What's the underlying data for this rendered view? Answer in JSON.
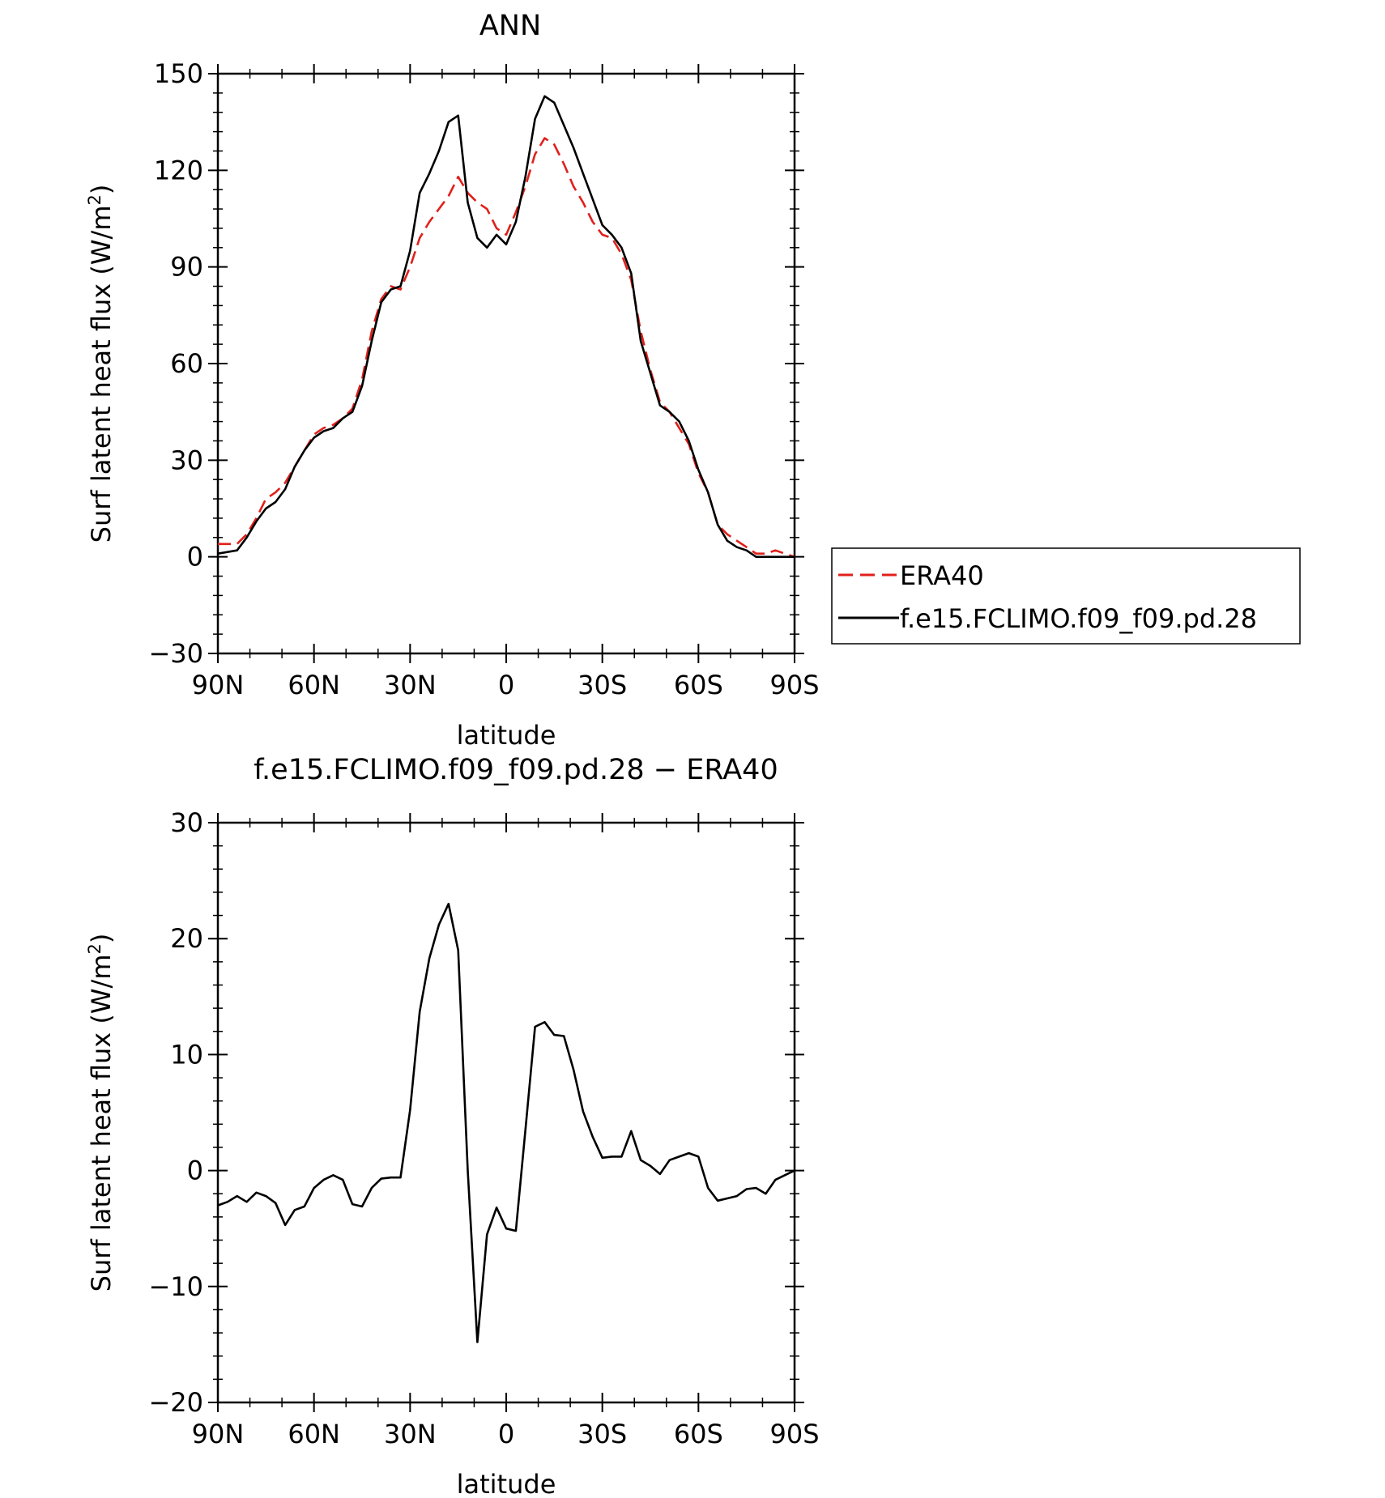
{
  "chart_data": [
    {
      "type": "line",
      "title": "ANN",
      "xlabel": "latitude",
      "ylabel": "Surf latent heat flux (W/m",
      "ylabel_superscript": "2",
      "ylabel_suffix": ")",
      "xlim": [
        90,
        -90
      ],
      "ylim": [
        -30,
        150
      ],
      "x_ticks": [
        90,
        60,
        30,
        0,
        -30,
        -60,
        -90
      ],
      "x_tick_labels": [
        "90N",
        "60N",
        "30N",
        "0",
        "30S",
        "60S",
        "90S"
      ],
      "y_ticks": [
        -30,
        0,
        30,
        60,
        90,
        120,
        150
      ],
      "y_tick_labels": [
        "−30",
        "0",
        "30",
        "60",
        "90",
        "120",
        "150"
      ],
      "grid": false,
      "legend": "right",
      "series": [
        {
          "name": "ERA40",
          "color": "#e0201b",
          "dash": "dashed",
          "x": [
            90,
            87,
            84,
            81,
            78,
            75,
            72,
            69,
            66,
            63,
            60,
            57,
            54,
            51,
            48,
            45,
            42,
            39,
            36,
            33,
            30,
            27,
            24,
            21,
            18,
            15,
            12,
            9,
            6,
            3,
            0,
            -3,
            -6,
            -9,
            -12,
            -15,
            -18,
            -21,
            -24,
            -27,
            -30,
            -33,
            -36,
            -39,
            -42,
            -45,
            -48,
            -51,
            -54,
            -57,
            -60,
            -63,
            -66,
            -69,
            -72,
            -75,
            -78,
            -81,
            -84,
            -87,
            -90
          ],
          "values": [
            4,
            4,
            4,
            7,
            12,
            18,
            20,
            23,
            28,
            33,
            38,
            40,
            41,
            43,
            46,
            55,
            70,
            80,
            84,
            83,
            90,
            99,
            104,
            108,
            112,
            118,
            113,
            110,
            108,
            102,
            100,
            107,
            115,
            125,
            130,
            128,
            122,
            115,
            110,
            104,
            100,
            99,
            94,
            86,
            70,
            58,
            48,
            45,
            40,
            35,
            26,
            20,
            10,
            7,
            5,
            3,
            1,
            1,
            2,
            1,
            0
          ]
        },
        {
          "name": "f.e15.FCLIMO.f09_f09.pd.28",
          "color": "#000000",
          "dash": "solid",
          "x": [
            90,
            87,
            84,
            81,
            78,
            75,
            72,
            69,
            66,
            63,
            60,
            57,
            54,
            51,
            48,
            45,
            42,
            39,
            36,
            33,
            30,
            27,
            24,
            21,
            18,
            15,
            12,
            9,
            6,
            3,
            0,
            -3,
            -6,
            -9,
            -12,
            -15,
            -18,
            -21,
            -24,
            -27,
            -30,
            -33,
            -36,
            -39,
            -42,
            -45,
            -48,
            -51,
            -54,
            -57,
            -60,
            -63,
            -66,
            -69,
            -72,
            -75,
            -78,
            -81,
            -84,
            -87,
            -90
          ],
          "values": [
            1,
            1.5,
            2,
            6,
            11,
            15,
            17,
            21,
            28,
            33,
            37,
            39,
            40,
            43,
            45,
            53,
            67,
            79,
            83,
            84,
            95,
            113,
            119,
            126,
            135,
            137,
            110,
            99,
            96,
            100,
            97,
            104,
            118,
            136,
            143,
            141,
            134,
            127,
            119,
            111,
            103,
            100,
            96,
            88,
            67,
            57,
            47,
            45,
            42,
            36,
            27,
            20,
            10,
            5,
            3,
            2,
            0,
            0,
            0,
            0,
            0
          ]
        }
      ]
    },
    {
      "type": "line",
      "title": "f.e15.FCLIMO.f09_f09.pd.28 − ERA40",
      "xlabel": "latitude",
      "ylabel": "Surf latent heat flux (W/m",
      "ylabel_superscript": "2",
      "ylabel_suffix": ")",
      "xlim": [
        90,
        -90
      ],
      "ylim": [
        -20,
        30
      ],
      "x_ticks": [
        90,
        60,
        30,
        0,
        -30,
        -60,
        -90
      ],
      "x_tick_labels": [
        "90N",
        "60N",
        "30N",
        "0",
        "30S",
        "60S",
        "90S"
      ],
      "y_ticks": [
        -20,
        -10,
        0,
        10,
        20,
        30
      ],
      "y_tick_labels": [
        "−20",
        "−10",
        "0",
        "10",
        "20",
        "30"
      ],
      "grid": false,
      "series": [
        {
          "color": "#000000",
          "dash": "solid",
          "x": [
            90,
            87,
            84,
            81,
            78,
            75,
            72,
            69,
            66,
            63,
            60,
            57,
            54,
            51,
            48,
            45,
            42,
            39,
            36,
            33,
            30,
            27,
            24,
            21,
            18,
            15,
            12,
            9,
            6,
            3,
            0,
            -3,
            -6,
            -9,
            -12,
            -15,
            -18,
            -21,
            -24,
            -27,
            -30,
            -33,
            -36,
            -39,
            -42,
            -45,
            -48,
            -51,
            -54,
            -57,
            -60,
            -63,
            -66,
            -69,
            -72,
            -75,
            -78,
            -81,
            -84,
            -87,
            -90
          ],
          "values": [
            -3,
            -2.7,
            -2.2,
            -2.7,
            -1.9,
            -2.2,
            -2.8,
            -4.7,
            -3.4,
            -3.1,
            -1.5,
            -0.8,
            -0.4,
            -0.8,
            -2.9,
            -3.1,
            -1.5,
            -0.7,
            -0.6,
            -0.6,
            5.2,
            13.7,
            18.3,
            21.2,
            23,
            19,
            0,
            -14.8,
            -5.5,
            -3.2,
            -5,
            -5.2,
            3.5,
            12.4,
            12.8,
            11.7,
            11.6,
            8.7,
            5.1,
            2.9,
            1.1,
            1.2,
            1.2,
            3.4,
            0.9,
            0.4,
            -0.3,
            0.9,
            1.2,
            1.5,
            1.2,
            -1.5,
            -2.6,
            -2.4,
            -2.2,
            -1.6,
            -1.5,
            -2,
            -0.8,
            -0.4,
            0
          ]
        }
      ]
    }
  ]
}
